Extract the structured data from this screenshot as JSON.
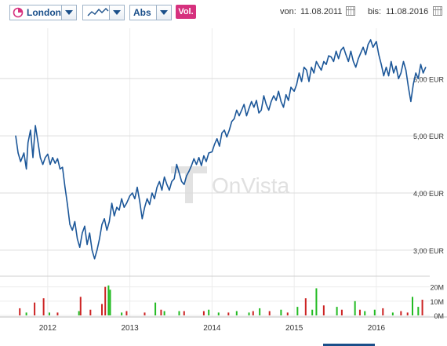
{
  "toolbar": {
    "exchange": "London",
    "chart_style_icon": "line-chart-icon",
    "scale": "Abs",
    "volume_button": "Vol.",
    "from_label": "von:",
    "from_date": "11.08.2011",
    "to_label": "bis:",
    "to_date": "11.08.2016"
  },
  "watermark": "OnVista",
  "colors": {
    "price_line": "#1c5799",
    "volume_up": "#22bb22",
    "volume_down": "#cc2222",
    "accent": "#d6317e"
  },
  "chart_data": [
    {
      "type": "line",
      "title": "",
      "xlabel": "",
      "ylabel": "",
      "x_ticks": [
        "2012",
        "2013",
        "2014",
        "2015",
        "2016"
      ],
      "y_ticks": [
        "3,00 EUR",
        "4,00 EUR",
        "5,00 EUR",
        "6,00 EUR"
      ],
      "ylim": [
        2.6,
        6.8
      ],
      "grid": true,
      "series": [
        {
          "x": [
            2011.61,
            2011.64,
            2011.67,
            2011.71,
            2011.74,
            2011.76,
            2011.79,
            2011.82,
            2011.85,
            2011.88,
            2011.91,
            2011.94,
            2011.97,
            2012.0,
            2012.03,
            2012.06,
            2012.09,
            2012.12,
            2012.15,
            2012.18,
            2012.21,
            2012.24,
            2012.27,
            2012.3,
            2012.33,
            2012.36,
            2012.39,
            2012.42,
            2012.45,
            2012.48,
            2012.51,
            2012.54,
            2012.57,
            2012.6,
            2012.63,
            2012.66,
            2012.69,
            2012.72,
            2012.75,
            2012.78,
            2012.81,
            2012.84,
            2012.87,
            2012.9,
            2012.93,
            2012.96,
            2013.0,
            2013.03,
            2013.06,
            2013.09,
            2013.12,
            2013.15,
            2013.18,
            2013.21,
            2013.24,
            2013.27,
            2013.3,
            2013.33,
            2013.36,
            2013.39,
            2013.42,
            2013.45,
            2013.48,
            2013.51,
            2013.54,
            2013.57,
            2013.6,
            2013.63,
            2013.66,
            2013.69,
            2013.72,
            2013.75,
            2013.78,
            2013.81,
            2013.84,
            2013.87,
            2013.9,
            2013.93,
            2013.96,
            2014.0,
            2014.03,
            2014.06,
            2014.09,
            2014.12,
            2014.15,
            2014.18,
            2014.21,
            2014.24,
            2014.27,
            2014.3,
            2014.33,
            2014.36,
            2014.39,
            2014.42,
            2014.45,
            2014.48,
            2014.51,
            2014.54,
            2014.57,
            2014.6,
            2014.63,
            2014.66,
            2014.69,
            2014.72,
            2014.75,
            2014.78,
            2014.81,
            2014.84,
            2014.87,
            2014.9,
            2014.93,
            2014.96,
            2015.0,
            2015.03,
            2015.06,
            2015.09,
            2015.12,
            2015.15,
            2015.18,
            2015.21,
            2015.24,
            2015.27,
            2015.3,
            2015.33,
            2015.36,
            2015.39,
            2015.42,
            2015.45,
            2015.48,
            2015.51,
            2015.54,
            2015.57,
            2015.6,
            2015.63,
            2015.66,
            2015.69,
            2015.72,
            2015.75,
            2015.78,
            2015.81,
            2015.84,
            2015.87,
            2015.9,
            2015.93,
            2015.96,
            2016.0,
            2016.03,
            2016.06,
            2016.09,
            2016.12,
            2016.15,
            2016.18,
            2016.21,
            2016.24,
            2016.27,
            2016.3,
            2016.33,
            2016.36,
            2016.39,
            2016.42,
            2016.45,
            2016.48,
            2016.51,
            2016.54,
            2016.57,
            2016.6
          ],
          "values": [
            5.0,
            4.7,
            4.55,
            4.7,
            4.42,
            4.88,
            5.1,
            4.62,
            5.18,
            4.9,
            4.62,
            4.5,
            4.62,
            4.68,
            4.5,
            4.62,
            4.52,
            4.6,
            4.42,
            4.45,
            4.1,
            3.8,
            3.45,
            3.35,
            3.5,
            3.2,
            3.05,
            3.3,
            3.42,
            3.1,
            3.3,
            3.0,
            2.85,
            3.0,
            3.2,
            3.45,
            3.55,
            3.35,
            3.5,
            3.82,
            3.6,
            3.75,
            3.7,
            3.9,
            3.75,
            3.82,
            3.95,
            4.0,
            3.9,
            4.1,
            3.85,
            3.55,
            3.75,
            3.9,
            3.8,
            4.0,
            3.9,
            4.1,
            4.2,
            4.05,
            4.28,
            4.15,
            4.05,
            4.2,
            4.25,
            4.5,
            4.35,
            4.2,
            4.15,
            4.3,
            4.38,
            4.48,
            4.6,
            4.5,
            4.62,
            4.48,
            4.65,
            4.55,
            4.7,
            4.72,
            4.85,
            4.95,
            4.82,
            5.05,
            5.1,
            4.98,
            5.1,
            5.25,
            5.3,
            5.45,
            5.35,
            5.45,
            5.55,
            5.35,
            5.48,
            5.6,
            5.5,
            5.62,
            5.4,
            5.45,
            5.7,
            5.55,
            5.45,
            5.6,
            5.7,
            5.62,
            5.78,
            5.6,
            5.5,
            5.72,
            5.62,
            5.85,
            5.78,
            5.9,
            6.1,
            5.95,
            6.2,
            6.15,
            5.95,
            6.2,
            6.1,
            6.3,
            6.22,
            6.15,
            6.3,
            6.25,
            6.4,
            6.38,
            6.3,
            6.48,
            6.35,
            6.5,
            6.55,
            6.42,
            6.3,
            6.48,
            6.3,
            6.2,
            6.35,
            6.45,
            6.55,
            6.42,
            6.6,
            6.68,
            6.55,
            6.65,
            6.42,
            6.25,
            6.05,
            6.2,
            6.05,
            6.3,
            6.1,
            6.22,
            6.0,
            6.1,
            6.3,
            6.15,
            5.85,
            5.6,
            5.9,
            6.1,
            6.0,
            6.25,
            6.1,
            6.2
          ]
        }
      ]
    },
    {
      "type": "bar",
      "title": "",
      "xlabel": "",
      "ylabel": "",
      "y_ticks": [
        "0M",
        "10M",
        "20M"
      ],
      "ylim": [
        0,
        22
      ],
      "up": [
        {
          "x": 2012.74,
          "v": 21
        },
        {
          "x": 2012.76,
          "v": 18
        },
        {
          "x": 2013.31,
          "v": 9
        },
        {
          "x": 2013.42,
          "v": 3
        },
        {
          "x": 2013.96,
          "v": 4
        },
        {
          "x": 2014.08,
          "v": 2
        },
        {
          "x": 2014.3,
          "v": 3
        },
        {
          "x": 2014.58,
          "v": 5
        },
        {
          "x": 2014.84,
          "v": 4
        },
        {
          "x": 2015.04,
          "v": 6
        },
        {
          "x": 2015.22,
          "v": 4
        },
        {
          "x": 2015.27,
          "v": 19
        },
        {
          "x": 2015.52,
          "v": 6
        },
        {
          "x": 2015.74,
          "v": 10
        },
        {
          "x": 2015.98,
          "v": 4
        },
        {
          "x": 2016.44,
          "v": 13
        },
        {
          "x": 2016.51,
          "v": 6
        },
        {
          "x": 2011.74,
          "v": 2
        },
        {
          "x": 2012.02,
          "v": 2
        },
        {
          "x": 2012.38,
          "v": 3
        },
        {
          "x": 2012.9,
          "v": 2
        },
        {
          "x": 2013.6,
          "v": 3
        },
        {
          "x": 2014.45,
          "v": 2
        },
        {
          "x": 2015.86,
          "v": 3
        },
        {
          "x": 2016.2,
          "v": 2
        }
      ],
      "down": [
        {
          "x": 2011.66,
          "v": 5
        },
        {
          "x": 2011.84,
          "v": 9
        },
        {
          "x": 2011.95,
          "v": 12
        },
        {
          "x": 2012.12,
          "v": 2
        },
        {
          "x": 2012.4,
          "v": 13
        },
        {
          "x": 2012.7,
          "v": 20
        },
        {
          "x": 2012.66,
          "v": 8
        },
        {
          "x": 2012.52,
          "v": 4
        },
        {
          "x": 2012.96,
          "v": 3
        },
        {
          "x": 2013.18,
          "v": 2
        },
        {
          "x": 2013.38,
          "v": 4
        },
        {
          "x": 2013.66,
          "v": 3
        },
        {
          "x": 2013.9,
          "v": 3
        },
        {
          "x": 2014.2,
          "v": 2
        },
        {
          "x": 2014.5,
          "v": 3
        },
        {
          "x": 2014.7,
          "v": 3
        },
        {
          "x": 2015.14,
          "v": 12
        },
        {
          "x": 2015.36,
          "v": 7
        },
        {
          "x": 2015.58,
          "v": 4
        },
        {
          "x": 2015.8,
          "v": 4
        },
        {
          "x": 2016.08,
          "v": 5
        },
        {
          "x": 2016.3,
          "v": 3
        },
        {
          "x": 2016.56,
          "v": 11
        },
        {
          "x": 2016.38,
          "v": 2
        },
        {
          "x": 2014.92,
          "v": 2
        }
      ]
    }
  ]
}
